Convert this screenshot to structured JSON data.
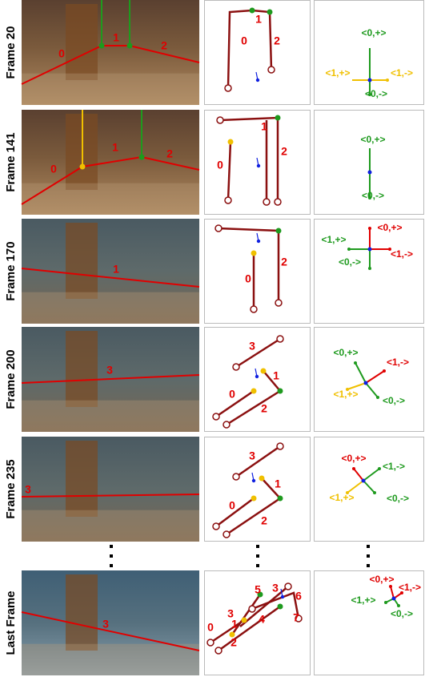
{
  "rows": [
    {
      "label": "Frame 20",
      "photo_labels": [
        "0",
        "1",
        "2"
      ],
      "map_labels": [
        "0",
        "1",
        "2"
      ],
      "arrow_labels": [
        "<0,+>",
        "<1,+>",
        "<1,->",
        "<0,->"
      ]
    },
    {
      "label": "Frame 141",
      "photo_labels": [
        "0",
        "1",
        "2"
      ],
      "map_labels": [
        "0",
        "1",
        "2"
      ],
      "arrow_labels": [
        "<0,+>",
        "<0,->"
      ]
    },
    {
      "label": "Frame 170",
      "photo_labels": [
        "1"
      ],
      "map_labels": [
        "0",
        "2"
      ],
      "arrow_labels": [
        "<0,+>",
        "<1,+>",
        "<1,->",
        "<0,->"
      ]
    },
    {
      "label": "Frame 200",
      "photo_labels": [
        "3"
      ],
      "map_labels": [
        "3",
        "1",
        "0",
        "2"
      ],
      "arrow_labels": [
        "<0,+>",
        "<1,->",
        "<1,+>",
        "<0,->"
      ]
    },
    {
      "label": "Frame 235",
      "photo_labels": [
        "3"
      ],
      "map_labels": [
        "3",
        "1",
        "0",
        "2"
      ],
      "arrow_labels": [
        "<0,+>",
        "<1,->",
        "<1,+>",
        "<0,->"
      ]
    },
    {
      "label": "Last Frame",
      "photo_labels": [
        "3"
      ],
      "map_labels": [
        "5",
        "3",
        "6",
        "3",
        "0",
        "1",
        "4",
        "7",
        "2"
      ],
      "arrow_labels": [
        "<0,+>",
        "<1,->",
        "<1,+>",
        "<0,->"
      ]
    }
  ]
}
